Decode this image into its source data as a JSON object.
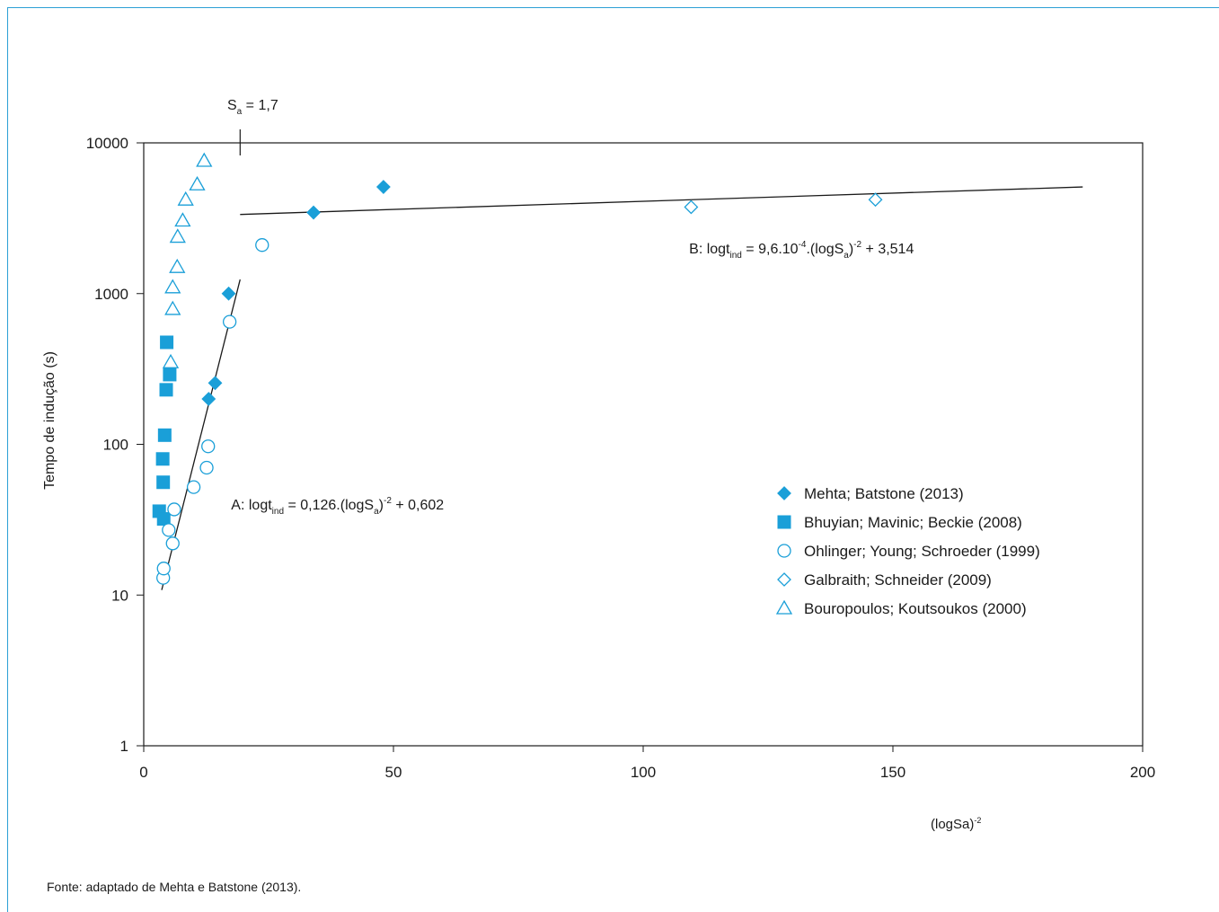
{
  "chart_data": {
    "type": "scatter",
    "y_scale": "log",
    "xlim": [
      0,
      200
    ],
    "ylim": [
      1,
      10000
    ],
    "x_ticks": [
      "0",
      "50",
      "100",
      "150",
      "200"
    ],
    "y_ticks": [
      "1",
      "10",
      "100",
      "1000",
      "10000"
    ],
    "xlabel": "(logSa)",
    "xlabel_sup": "-2",
    "ylabel": "Tempo de indução (s)",
    "threshold": {
      "x": 19.3,
      "label": "S",
      "label_sub": "a",
      "label_rest": " = 1,7"
    },
    "series": [
      {
        "name": "Mehta; Batstone (2013)",
        "marker": "diamond-filled",
        "color": "#1a9fd8",
        "points": [
          [
            13,
            200
          ],
          [
            14.3,
            255
          ],
          [
            17,
            1000
          ],
          [
            34,
            3450
          ],
          [
            48,
            5100
          ]
        ]
      },
      {
        "name": "Bhuyian; Mavinic; Beckie (2008)",
        "marker": "square-filled",
        "color": "#1a9fd8",
        "points": [
          [
            3.1,
            36
          ],
          [
            4,
            32
          ],
          [
            3.9,
            56
          ],
          [
            3.8,
            80
          ],
          [
            4.2,
            115
          ],
          [
            4.5,
            230
          ],
          [
            4.6,
            475
          ],
          [
            5.2,
            290
          ]
        ]
      },
      {
        "name": "Ohlinger; Young; Schroeder (1999)",
        "marker": "circle-open",
        "color": "#1a9fd8",
        "points": [
          [
            3.9,
            13
          ],
          [
            4,
            15
          ],
          [
            5,
            27
          ],
          [
            5.8,
            22
          ],
          [
            6.1,
            37
          ],
          [
            10,
            52
          ],
          [
            12.6,
            70
          ],
          [
            12.9,
            97
          ],
          [
            17.2,
            650
          ],
          [
            23.7,
            2100
          ]
        ]
      },
      {
        "name": "Galbraith; Schneider (2009)",
        "marker": "diamond-open",
        "color": "#1a9fd8",
        "points": [
          [
            109.6,
            3750
          ],
          [
            146.5,
            4200
          ]
        ]
      },
      {
        "name": "Bouropoulos; Koutsoukos (2000)",
        "marker": "triangle-open",
        "color": "#1a9fd8",
        "points": [
          [
            5.4,
            350
          ],
          [
            5.8,
            790
          ],
          [
            5.8,
            1100
          ],
          [
            6.7,
            1500
          ],
          [
            6.8,
            2380
          ],
          [
            7.8,
            3050
          ],
          [
            8.4,
            4200
          ],
          [
            10.7,
            5300
          ],
          [
            12.1,
            7600
          ]
        ]
      }
    ],
    "fit_lines": [
      {
        "id": "A",
        "from": [
          3.6,
          10.8
        ],
        "to": [
          19.3,
          1240
        ],
        "eq_main": "A: logt",
        "eq_sub": "ind",
        "eq_mid": " = 0,126.(logS",
        "eq_sub2": "a",
        "eq_sup": "-2",
        "eq_tail": " + 0,602",
        "eq_anchor": [
          17.5,
          37
        ]
      },
      {
        "id": "B",
        "from": [
          19.3,
          3350
        ],
        "to": [
          188,
          5100
        ],
        "eq_main": "B: logt",
        "eq_sub": "ind",
        "eq_mid": " = 9,6.10",
        "eq_sup0": "-4",
        "eq_mid2": ".(logS",
        "eq_sub2": "a",
        "eq_sup": "-2",
        "eq_tail": " + 3,514",
        "eq_anchor": [
          109.2,
          1850
        ]
      }
    ]
  },
  "source_note": "Fonte: adaptado de Mehta e Batstone (2013)."
}
